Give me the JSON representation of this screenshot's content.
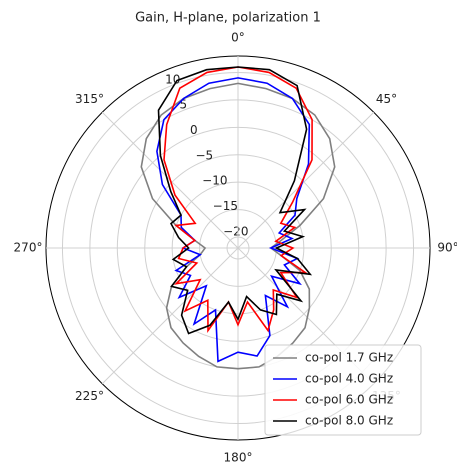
{
  "chart_data": {
    "type": "polar",
    "title": "Gain, H-plane, polarization 1",
    "x": [
      0,
      10,
      20,
      30,
      40,
      50,
      60,
      70,
      80,
      90,
      100,
      110,
      120,
      130,
      140,
      150,
      160,
      170,
      180,
      190,
      200,
      210,
      220,
      230,
      240,
      250,
      260,
      270,
      280,
      290,
      300,
      310,
      320,
      330,
      340,
      350
    ],
    "xticks": [
      {
        "value": 0,
        "label": "0°"
      },
      {
        "value": 45,
        "label": "45°"
      },
      {
        "value": 90,
        "label": "90°"
      },
      {
        "value": 135,
        "label": "135°"
      },
      {
        "value": 180,
        "label": "180°"
      },
      {
        "value": 225,
        "label": "225°"
      },
      {
        "value": 270,
        "label": "270°"
      },
      {
        "value": 315,
        "label": "315°"
      }
    ],
    "ylim": [
      -22,
      13
    ],
    "yticks": [
      {
        "value": -20,
        "label": "−20"
      },
      {
        "value": -15,
        "label": "−15"
      },
      {
        "value": -10,
        "label": "−10"
      },
      {
        "value": -5,
        "label": "−5"
      },
      0,
      5,
      10
    ],
    "theta_direction": "clockwise",
    "theta_zero": "N",
    "grid": true,
    "legend": "lower right",
    "series": [
      {
        "name": "co-pol 1.7 GHz",
        "color": "#808080",
        "values": [
          8,
          7.5,
          7,
          6,
          4,
          1,
          -4,
          -10,
          -14,
          -16,
          -14,
          -10,
          -7,
          -5,
          -3,
          -2,
          -1,
          0,
          0,
          0,
          -1,
          -2,
          -3,
          -5,
          -8,
          -12,
          -15,
          -16,
          -14,
          -10,
          -4,
          1,
          4,
          6,
          7,
          7.5
        ]
      },
      {
        "name": "co-pol 4.0 GHz",
        "color": "#0000ff",
        "values": [
          9,
          8.5,
          7,
          4,
          -2,
          -8,
          -10,
          -14,
          -12,
          -16,
          -11,
          -13,
          -9,
          -14,
          -8,
          -12,
          -5,
          -2,
          -3,
          -1,
          -10,
          -6,
          -13,
          -8,
          -12,
          -10,
          -15,
          -12,
          -14,
          -11,
          -10,
          -4,
          1,
          5,
          7,
          8.5
        ]
      },
      {
        "name": "co-pol 6.0 GHz",
        "color": "#ff0000",
        "values": [
          11,
          10.5,
          9,
          5,
          -1,
          -9,
          -13,
          -11,
          -15,
          -12,
          -14,
          -9,
          -13,
          -8,
          -12,
          -9,
          -6,
          -12,
          -8,
          -12,
          -6,
          -11,
          -7,
          -13,
          -9,
          -14,
          -11,
          -12,
          -14,
          -10,
          -13,
          -7,
          -1,
          4,
          9,
          10.5
        ]
      },
      {
        "name": "co-pol 8.0 GHz",
        "color": "#000000",
        "values": [
          11,
          11,
          9.5,
          3,
          -6,
          -12,
          -8,
          -13,
          -10,
          -15,
          -11,
          -8,
          -14,
          -7,
          -11,
          -8,
          -10,
          -13,
          -9,
          -12,
          -7,
          -4,
          -6,
          -10,
          -8,
          -12,
          -10,
          -13,
          -11,
          -9,
          -10,
          -6,
          0,
          7,
          10.5,
          11
        ]
      }
    ]
  }
}
